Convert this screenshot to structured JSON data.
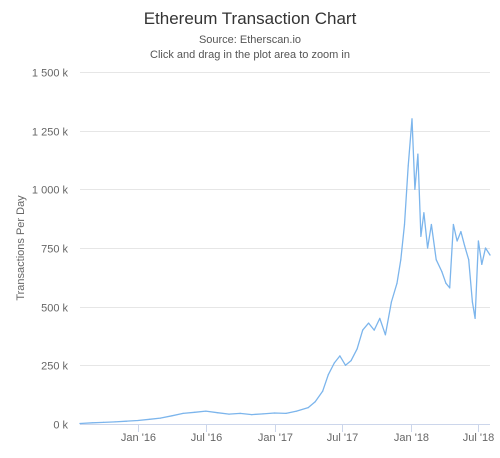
{
  "chart_data": {
    "type": "line",
    "title": "Ethereum Transaction Chart",
    "subtitle_source": "Source: Etherscan.io",
    "subtitle_hint": "Click and drag in the plot area to zoom in",
    "xlabel": "",
    "ylabel": "Transactions Per Day",
    "ylim": [
      0,
      1500000
    ],
    "y_ticks": [
      {
        "value": 0,
        "label": "0 k"
      },
      {
        "value": 250000,
        "label": "250 k"
      },
      {
        "value": 500000,
        "label": "500 k"
      },
      {
        "value": 750000,
        "label": "750 k"
      },
      {
        "value": 1000000,
        "label": "1 000 k"
      },
      {
        "value": 1250000,
        "label": "1 250 k"
      },
      {
        "value": 1500000,
        "label": "1 500 k"
      }
    ],
    "xlim": [
      "2015-07-30",
      "2018-08-01"
    ],
    "x_ticks": [
      {
        "value": "2016-01-01",
        "label": "Jan '16"
      },
      {
        "value": "2016-07-01",
        "label": "Jul '16"
      },
      {
        "value": "2017-01-01",
        "label": "Jan '17"
      },
      {
        "value": "2017-07-01",
        "label": "Jul '17"
      },
      {
        "value": "2018-01-01",
        "label": "Jan '18"
      },
      {
        "value": "2018-07-01",
        "label": "Jul '18"
      }
    ],
    "grid": true,
    "legend": "none",
    "series_color": "#7cb5ec",
    "series": [
      {
        "x": [
          "2015-07-30",
          "2015-09-01",
          "2015-10-01",
          "2015-11-01",
          "2015-12-01",
          "2016-01-01",
          "2016-02-01",
          "2016-03-01",
          "2016-04-01",
          "2016-05-01",
          "2016-06-01",
          "2016-07-01",
          "2016-08-01",
          "2016-09-01",
          "2016-10-01",
          "2016-11-01",
          "2016-12-01",
          "2017-01-01",
          "2017-02-01",
          "2017-03-01",
          "2017-04-01",
          "2017-04-20",
          "2017-05-10",
          "2017-05-25",
          "2017-06-10",
          "2017-06-25",
          "2017-07-10",
          "2017-07-25",
          "2017-08-10",
          "2017-08-25",
          "2017-09-10",
          "2017-09-25",
          "2017-10-10",
          "2017-10-25",
          "2017-11-10",
          "2017-11-25",
          "2017-12-05",
          "2017-12-15",
          "2017-12-25",
          "2018-01-04",
          "2018-01-12",
          "2018-01-20",
          "2018-01-28",
          "2018-02-05",
          "2018-02-15",
          "2018-02-25",
          "2018-03-10",
          "2018-03-25",
          "2018-04-05",
          "2018-04-15",
          "2018-04-25",
          "2018-05-05",
          "2018-05-15",
          "2018-05-25",
          "2018-06-05",
          "2018-06-15",
          "2018-06-22",
          "2018-07-01",
          "2018-07-10",
          "2018-07-20",
          "2018-08-01"
        ],
        "values": [
          2000,
          5000,
          7000,
          9000,
          12000,
          15000,
          20000,
          25000,
          35000,
          45000,
          50000,
          55000,
          48000,
          42000,
          45000,
          40000,
          43000,
          47000,
          45000,
          55000,
          70000,
          95000,
          140000,
          210000,
          260000,
          290000,
          250000,
          270000,
          320000,
          400000,
          430000,
          400000,
          450000,
          380000,
          520000,
          600000,
          700000,
          850000,
          1100000,
          1300000,
          1000000,
          1150000,
          800000,
          900000,
          750000,
          850000,
          700000,
          650000,
          600000,
          580000,
          850000,
          780000,
          820000,
          760000,
          700000,
          520000,
          450000,
          780000,
          680000,
          750000,
          720000
        ]
      }
    ]
  }
}
